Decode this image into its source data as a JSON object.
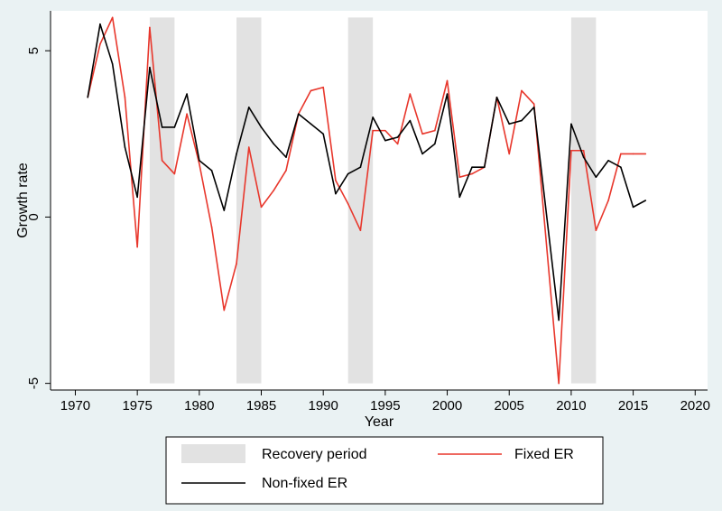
{
  "chart_data": {
    "type": "line",
    "xlabel": "Year",
    "ylabel": "Growth rate",
    "xlim": [
      1968,
      2021
    ],
    "ylim": [
      -5.2,
      6.2
    ],
    "xticks": [
      1970,
      1975,
      1980,
      1985,
      1990,
      1995,
      2000,
      2005,
      2010,
      2015,
      2020
    ],
    "yticks": [
      -5,
      0,
      5
    ],
    "ytick_labels": [
      "-5",
      "0",
      "5"
    ],
    "grid": false,
    "legend_position": "bottom",
    "recovery_periods": [
      [
        1976,
        1978
      ],
      [
        1983,
        1985
      ],
      [
        1992,
        1994
      ],
      [
        2010,
        2012
      ]
    ],
    "legend": {
      "recovery": "Recovery period",
      "fixed": "Fixed ER",
      "nonfixed": "Non-fixed ER"
    },
    "colors": {
      "background": "#eaf2f3",
      "plot_bg": "#ffffff",
      "recovery": "#e2e2e2",
      "fixed": "#e8372c",
      "nonfixed": "#000000"
    },
    "x": [
      1971,
      1972,
      1973,
      1974,
      1975,
      1976,
      1977,
      1978,
      1979,
      1980,
      1981,
      1982,
      1983,
      1984,
      1985,
      1986,
      1987,
      1988,
      1989,
      1990,
      1991,
      1992,
      1993,
      1994,
      1995,
      1996,
      1997,
      1998,
      1999,
      2000,
      2001,
      2002,
      2003,
      2004,
      2005,
      2006,
      2007,
      2008,
      2009,
      2010,
      2011,
      2012,
      2013,
      2014,
      2015,
      2016
    ],
    "series": [
      {
        "name": "Fixed ER",
        "values": [
          3.6,
          5.2,
          6.0,
          3.6,
          -0.9,
          5.7,
          1.7,
          1.3,
          3.1,
          1.6,
          -0.3,
          -2.8,
          -1.4,
          2.1,
          0.3,
          0.8,
          1.4,
          3.1,
          3.8,
          3.9,
          1.1,
          0.4,
          -0.4,
          2.6,
          2.6,
          2.2,
          3.7,
          2.5,
          2.6,
          4.1,
          1.2,
          1.3,
          1.5,
          3.6,
          1.9,
          3.8,
          3.4,
          null,
          -5.0,
          2.0,
          2.0,
          -0.4,
          0.5,
          1.9,
          1.9,
          1.9
        ]
      },
      {
        "name": "Non-fixed ER",
        "values": [
          3.6,
          5.8,
          4.6,
          2.1,
          0.6,
          4.5,
          2.7,
          2.7,
          3.7,
          1.7,
          1.4,
          0.2,
          1.9,
          3.3,
          2.7,
          2.2,
          1.8,
          3.1,
          2.8,
          2.5,
          0.7,
          1.3,
          1.5,
          3.0,
          2.3,
          2.4,
          2.9,
          1.9,
          2.2,
          3.7,
          0.6,
          1.5,
          1.5,
          3.6,
          2.8,
          2.9,
          3.3,
          null,
          -3.1,
          2.8,
          1.8,
          1.2,
          1.7,
          1.5,
          0.3,
          0.5
        ]
      }
    ]
  }
}
